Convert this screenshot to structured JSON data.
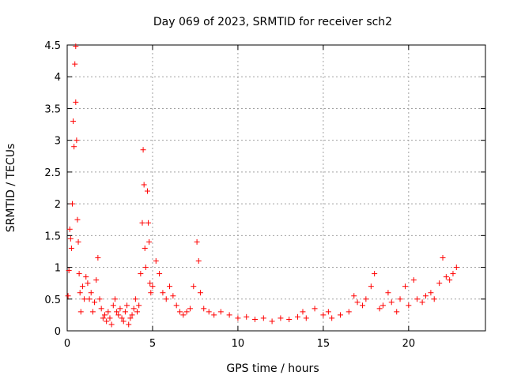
{
  "chart_data": {
    "type": "scatter",
    "title": "Day 069 of 2023, SRMTID for receiver sch2",
    "xlabel": "GPS time / hours",
    "ylabel": "SRMTID / TECUs",
    "xlim": [
      0,
      24.5
    ],
    "ylim": [
      0,
      4.5
    ],
    "xticks": [
      0,
      5,
      10,
      15,
      20
    ],
    "xtick_labels": [
      "0",
      "5",
      "10",
      "15",
      "20"
    ],
    "yticks": [
      0,
      0.5,
      1,
      1.5,
      2,
      2.5,
      3,
      3.5,
      4,
      4.5
    ],
    "ytick_labels": [
      "0",
      "0.5",
      "1",
      "1.5",
      "2",
      "2.5",
      "3",
      "3.5",
      "4",
      "4.5"
    ],
    "grid": true,
    "marker": "+",
    "color": "#ff0000",
    "series": [
      {
        "name": "SRMTID",
        "x": [
          0.05,
          0.1,
          0.15,
          0.2,
          0.25,
          0.3,
          0.35,
          0.4,
          0.45,
          0.5,
          0.5,
          0.55,
          0.6,
          0.65,
          0.7,
          0.75,
          0.8,
          0.9,
          1.0,
          1.1,
          1.2,
          1.3,
          1.4,
          1.5,
          1.6,
          1.7,
          1.8,
          1.9,
          2.0,
          2.1,
          2.2,
          2.3,
          2.4,
          2.5,
          2.6,
          2.7,
          2.8,
          2.9,
          3.0,
          3.1,
          3.2,
          3.3,
          3.4,
          3.5,
          3.6,
          3.7,
          3.8,
          3.9,
          4.0,
          4.1,
          4.2,
          4.3,
          4.4,
          4.45,
          4.5,
          4.55,
          4.6,
          4.7,
          4.75,
          4.8,
          4.85,
          4.9,
          5.0,
          5.2,
          5.4,
          5.6,
          5.8,
          6.0,
          6.2,
          6.4,
          6.6,
          6.8,
          7.0,
          7.2,
          7.4,
          7.6,
          7.7,
          7.8,
          8.0,
          8.3,
          8.6,
          9.0,
          9.5,
          10.0,
          10.5,
          11.0,
          11.5,
          12.0,
          12.5,
          13.0,
          13.5,
          13.8,
          14.0,
          14.5,
          15.0,
          15.3,
          15.5,
          16.0,
          16.5,
          16.8,
          17.0,
          17.3,
          17.5,
          17.8,
          18.0,
          18.3,
          18.5,
          18.8,
          19.0,
          19.3,
          19.5,
          19.8,
          20.0,
          20.3,
          20.5,
          20.8,
          21.0,
          21.3,
          21.5,
          21.8,
          22.0,
          22.2,
          22.4,
          22.6,
          22.8
        ],
        "y": [
          0.55,
          0.95,
          1.6,
          1.45,
          1.3,
          2.0,
          3.3,
          2.9,
          4.2,
          4.48,
          3.6,
          3.0,
          1.75,
          1.4,
          0.9,
          0.6,
          0.3,
          0.7,
          0.5,
          0.85,
          0.75,
          0.5,
          0.6,
          0.3,
          0.45,
          0.8,
          1.15,
          0.5,
          0.35,
          0.2,
          0.25,
          0.15,
          0.3,
          0.2,
          0.1,
          0.4,
          0.5,
          0.3,
          0.25,
          0.35,
          0.2,
          0.15,
          0.3,
          0.4,
          0.1,
          0.2,
          0.25,
          0.35,
          0.5,
          0.3,
          0.4,
          0.9,
          1.7,
          2.85,
          2.3,
          1.3,
          1.0,
          2.2,
          1.7,
          1.4,
          0.75,
          0.6,
          0.7,
          1.1,
          0.9,
          0.6,
          0.5,
          0.7,
          0.55,
          0.4,
          0.3,
          0.25,
          0.3,
          0.35,
          0.7,
          1.4,
          1.1,
          0.6,
          0.35,
          0.3,
          0.25,
          0.3,
          0.25,
          0.2,
          0.22,
          0.18,
          0.2,
          0.15,
          0.2,
          0.18,
          0.22,
          0.3,
          0.2,
          0.35,
          0.25,
          0.3,
          0.2,
          0.25,
          0.3,
          0.55,
          0.45,
          0.4,
          0.5,
          0.7,
          0.9,
          0.35,
          0.4,
          0.6,
          0.45,
          0.3,
          0.5,
          0.7,
          0.4,
          0.8,
          0.5,
          0.45,
          0.55,
          0.6,
          0.5,
          0.75,
          1.15,
          0.85,
          0.8,
          0.9,
          1.0
        ]
      }
    ]
  }
}
